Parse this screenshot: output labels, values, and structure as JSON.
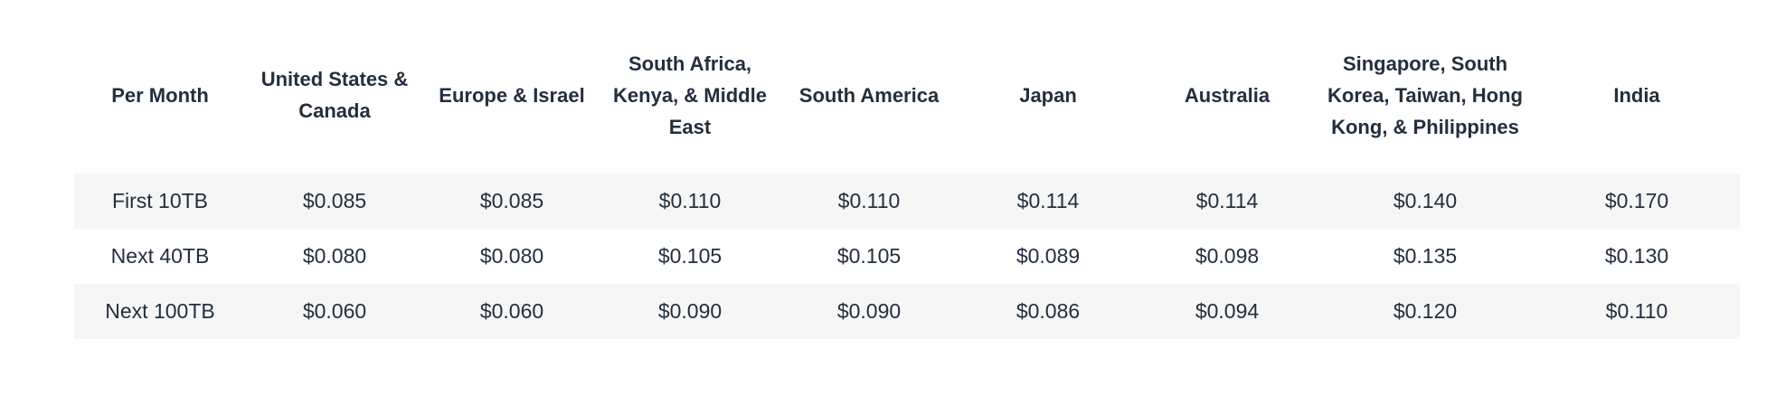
{
  "pricing_table": {
    "headers": [
      "Per Month",
      "United States & Canada",
      "Europe & Israel",
      "South Africa, Kenya, & Middle East",
      "South America",
      "Japan",
      "Australia",
      "Singapore, South Korea, Taiwan, Hong Kong, & Philippines",
      "India"
    ],
    "rows": [
      {
        "cells": [
          "First 10TB",
          "$0.085",
          "$0.085",
          "$0.110",
          "$0.110",
          "$0.114",
          "$0.114",
          "$0.140",
          "$0.170"
        ]
      },
      {
        "cells": [
          "Next 40TB",
          "$0.080",
          "$0.080",
          "$0.105",
          "$0.105",
          "$0.089",
          "$0.098",
          "$0.135",
          "$0.130"
        ]
      },
      {
        "cells": [
          "Next 100TB",
          "$0.060",
          "$0.060",
          "$0.090",
          "$0.090",
          "$0.086",
          "$0.094",
          "$0.120",
          "$0.110"
        ]
      }
    ]
  },
  "colors": {
    "text": "#232f3e",
    "stripe": "#f6f6f6",
    "background": "#ffffff"
  }
}
